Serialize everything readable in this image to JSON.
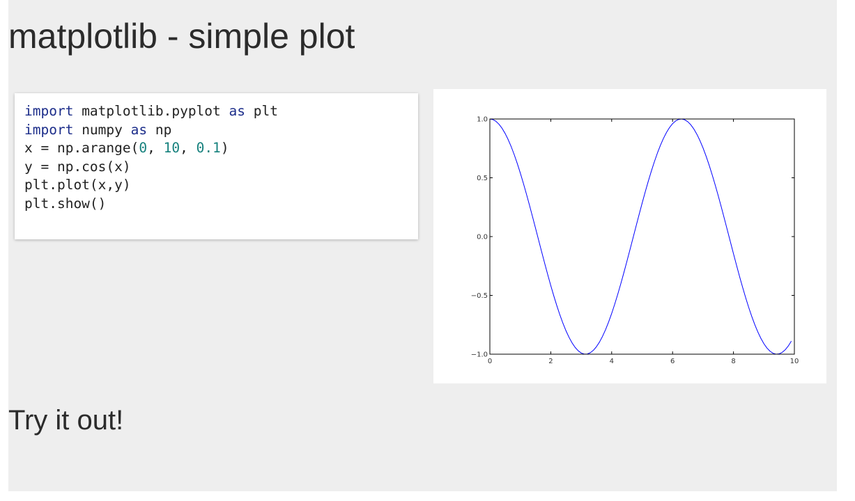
{
  "title": "matplotlib - simple plot",
  "subtitle": "Try it out!",
  "code": {
    "lines": [
      [
        {
          "t": "import",
          "k": "kw"
        },
        {
          "t": " matplotlib.pyplot ",
          "k": ""
        },
        {
          "t": "as",
          "k": "kw"
        },
        {
          "t": " plt",
          "k": ""
        }
      ],
      [
        {
          "t": "import",
          "k": "kw"
        },
        {
          "t": " numpy ",
          "k": ""
        },
        {
          "t": "as",
          "k": "kw"
        },
        {
          "t": " np",
          "k": ""
        }
      ],
      [
        {
          "t": "x = np.arange(",
          "k": ""
        },
        {
          "t": "0",
          "k": "num"
        },
        {
          "t": ", ",
          "k": ""
        },
        {
          "t": "10",
          "k": "num"
        },
        {
          "t": ", ",
          "k": ""
        },
        {
          "t": "0.1",
          "k": "num"
        },
        {
          "t": ")",
          "k": ""
        }
      ],
      [
        {
          "t": "y = np.cos(x)",
          "k": ""
        }
      ],
      [
        {
          "t": "plt.plot(x,y)",
          "k": ""
        }
      ],
      [
        {
          "t": "plt.show()",
          "k": ""
        }
      ]
    ],
    "colors": {
      "keyword": "#1c2d8a",
      "number": "#16817d",
      "text": "#222222"
    }
  },
  "chart_data": {
    "type": "line",
    "title": "",
    "xlabel": "",
    "ylabel": "",
    "xlim": [
      0,
      10
    ],
    "ylim": [
      -1.0,
      1.0
    ],
    "xticks": [
      0,
      2,
      4,
      6,
      8,
      10
    ],
    "xtick_labels": [
      "0",
      "2",
      "4",
      "6",
      "8",
      "10"
    ],
    "yticks": [
      -1.0,
      -0.5,
      0.0,
      0.5,
      1.0
    ],
    "ytick_labels": [
      "−1.0",
      "−0.5",
      "0.0",
      "0.5",
      "1.0"
    ],
    "grid": false,
    "series": [
      {
        "function": "cos(x)",
        "x_start": 0,
        "x_stop": 10,
        "x_step": 0.1,
        "color": "#0000ff"
      }
    ]
  }
}
